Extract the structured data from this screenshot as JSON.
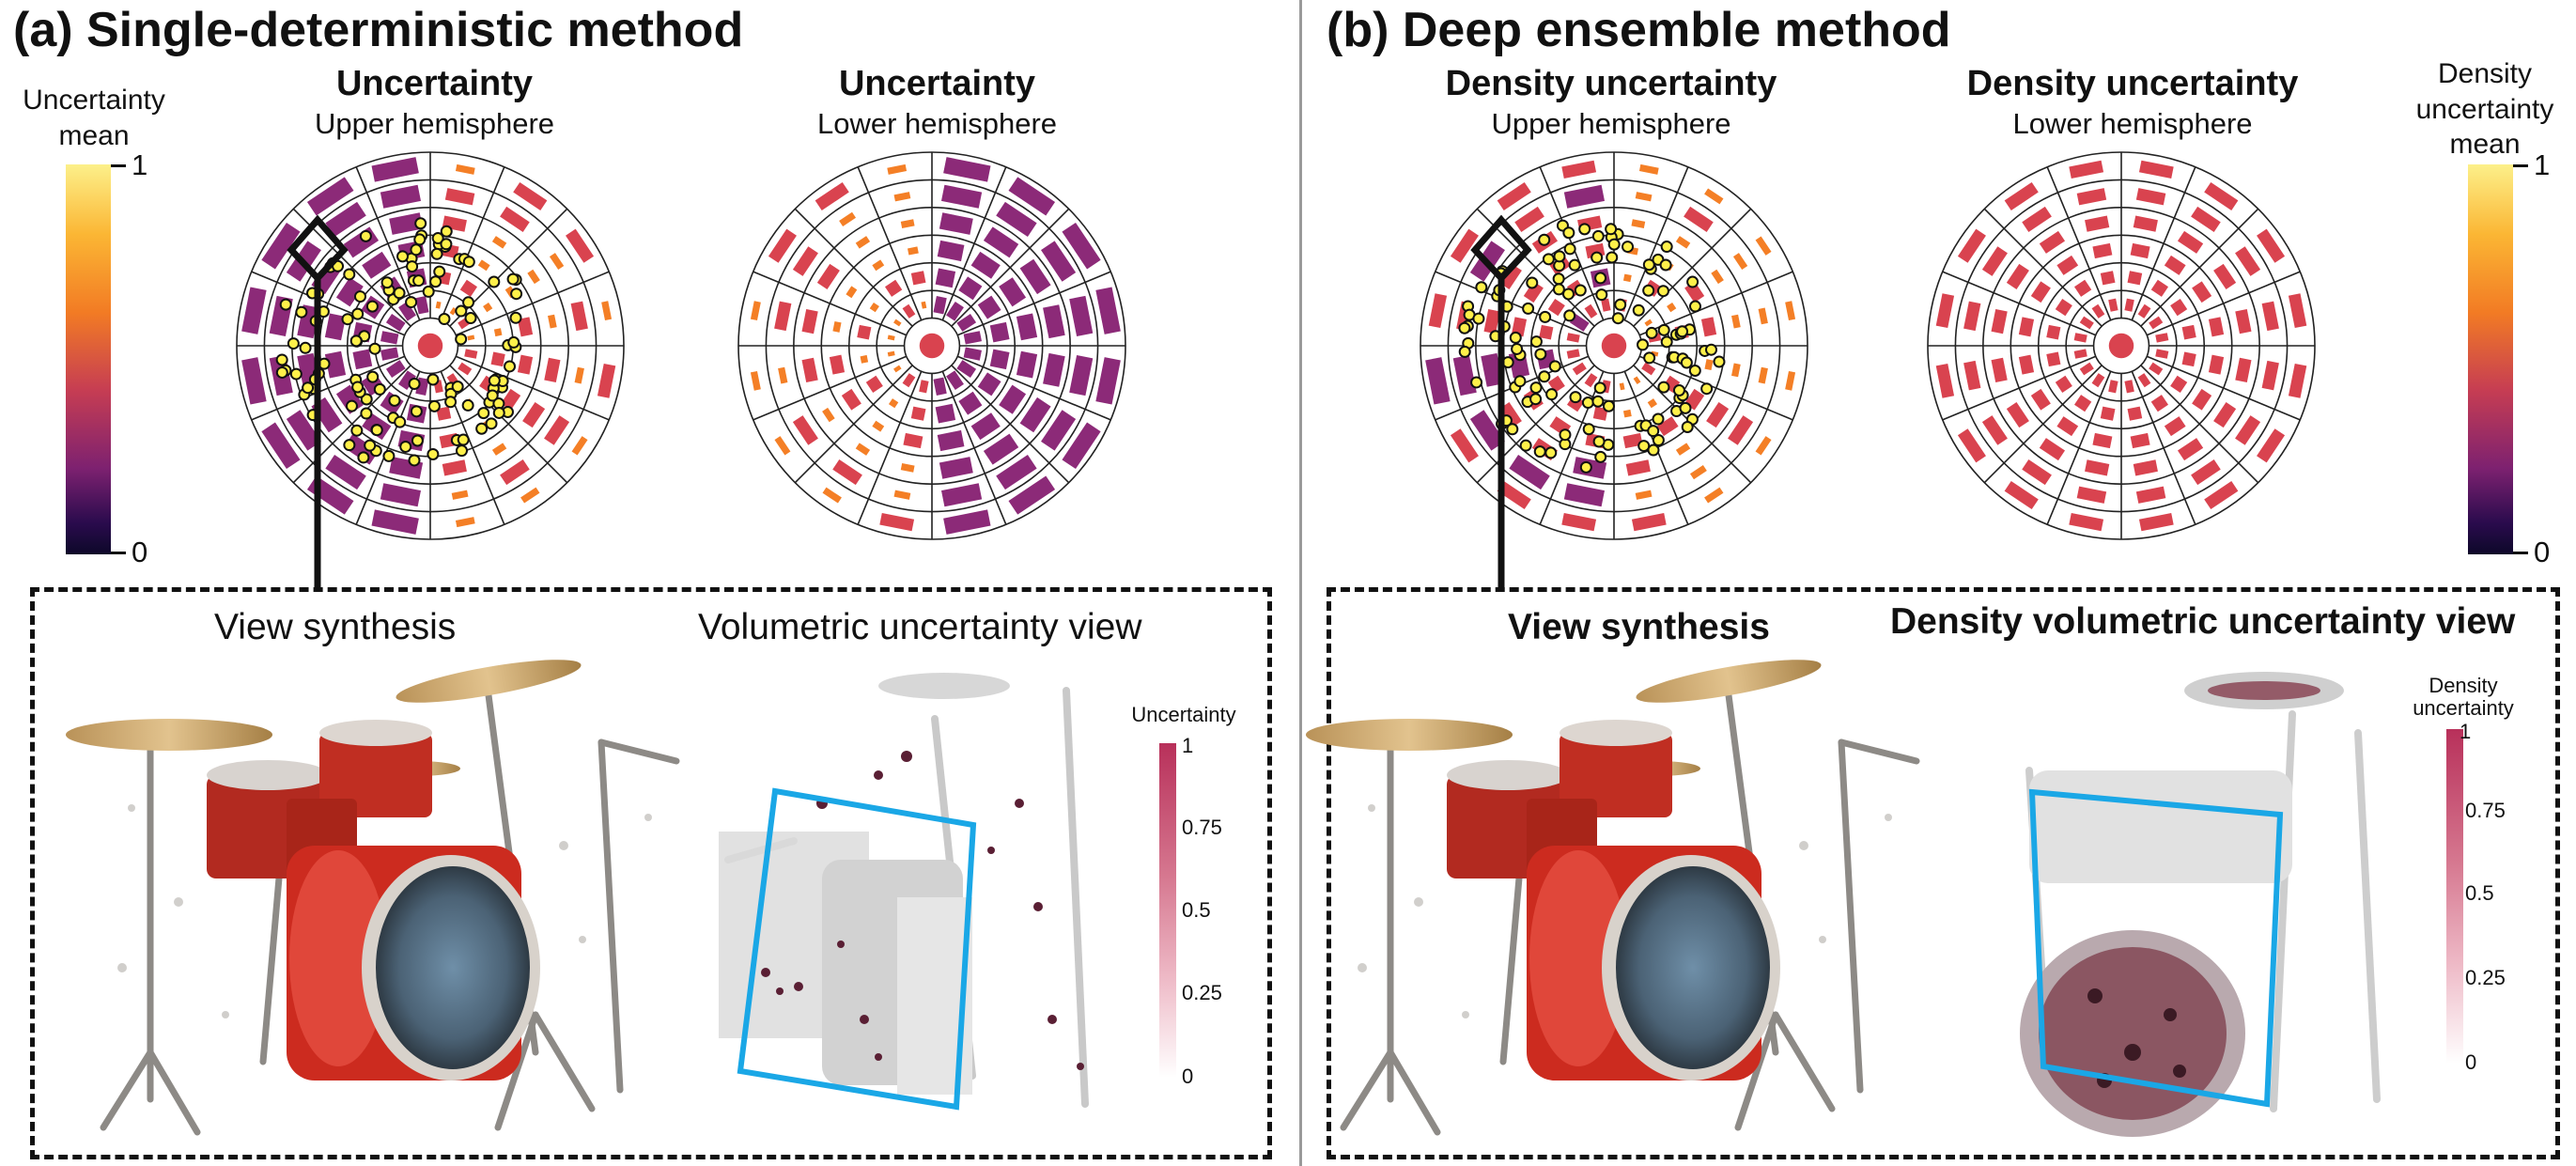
{
  "panels": {
    "a": {
      "title": "(a) Single-deterministic method",
      "polar_upper": {
        "title": "Uncertainty",
        "subtitle": "Upper hemisphere"
      },
      "polar_lower": {
        "title": "Uncertainty",
        "subtitle": "Lower hemisphere"
      },
      "colorbar": {
        "label": "Uncertainty\nmean",
        "max": "1",
        "min": "0"
      },
      "view_synthesis": "View synthesis",
      "volumetric_view": "Volumetric uncertainty view",
      "vol_colorbar": {
        "title": "Uncertainty",
        "ticks": [
          "1",
          "0.75",
          "0.5",
          "0.25",
          "0"
        ]
      }
    },
    "b": {
      "title": "(b) Deep ensemble method",
      "polar_upper": {
        "title": "Density uncertainty",
        "subtitle": "Upper hemisphere"
      },
      "polar_lower": {
        "title": "Density uncertainty",
        "subtitle": "Lower hemisphere"
      },
      "colorbar": {
        "label": "Density\nuncertainty\nmean",
        "max": "1",
        "min": "0"
      },
      "view_synthesis": "View synthesis",
      "volumetric_view": "Density volumetric uncertainty view",
      "vol_colorbar": {
        "title": "Density\nuncertainty",
        "ticks": [
          "1",
          "0.75",
          "0.5",
          "0.25",
          "0"
        ]
      }
    }
  },
  "colors": {
    "inferno_low": "#0d0829",
    "inferno_mid": "#b83a5c",
    "inferno_high": "#fbe04a",
    "magenta_bar": "#8c2a78",
    "red_bar": "#d9434f",
    "orange_bar": "#f47f26",
    "selection_box": "#1aa7e6",
    "camera_dot": "#fff04a",
    "drum_red": "#cc2b1f",
    "cymbal_gold": "#c9a366"
  }
}
